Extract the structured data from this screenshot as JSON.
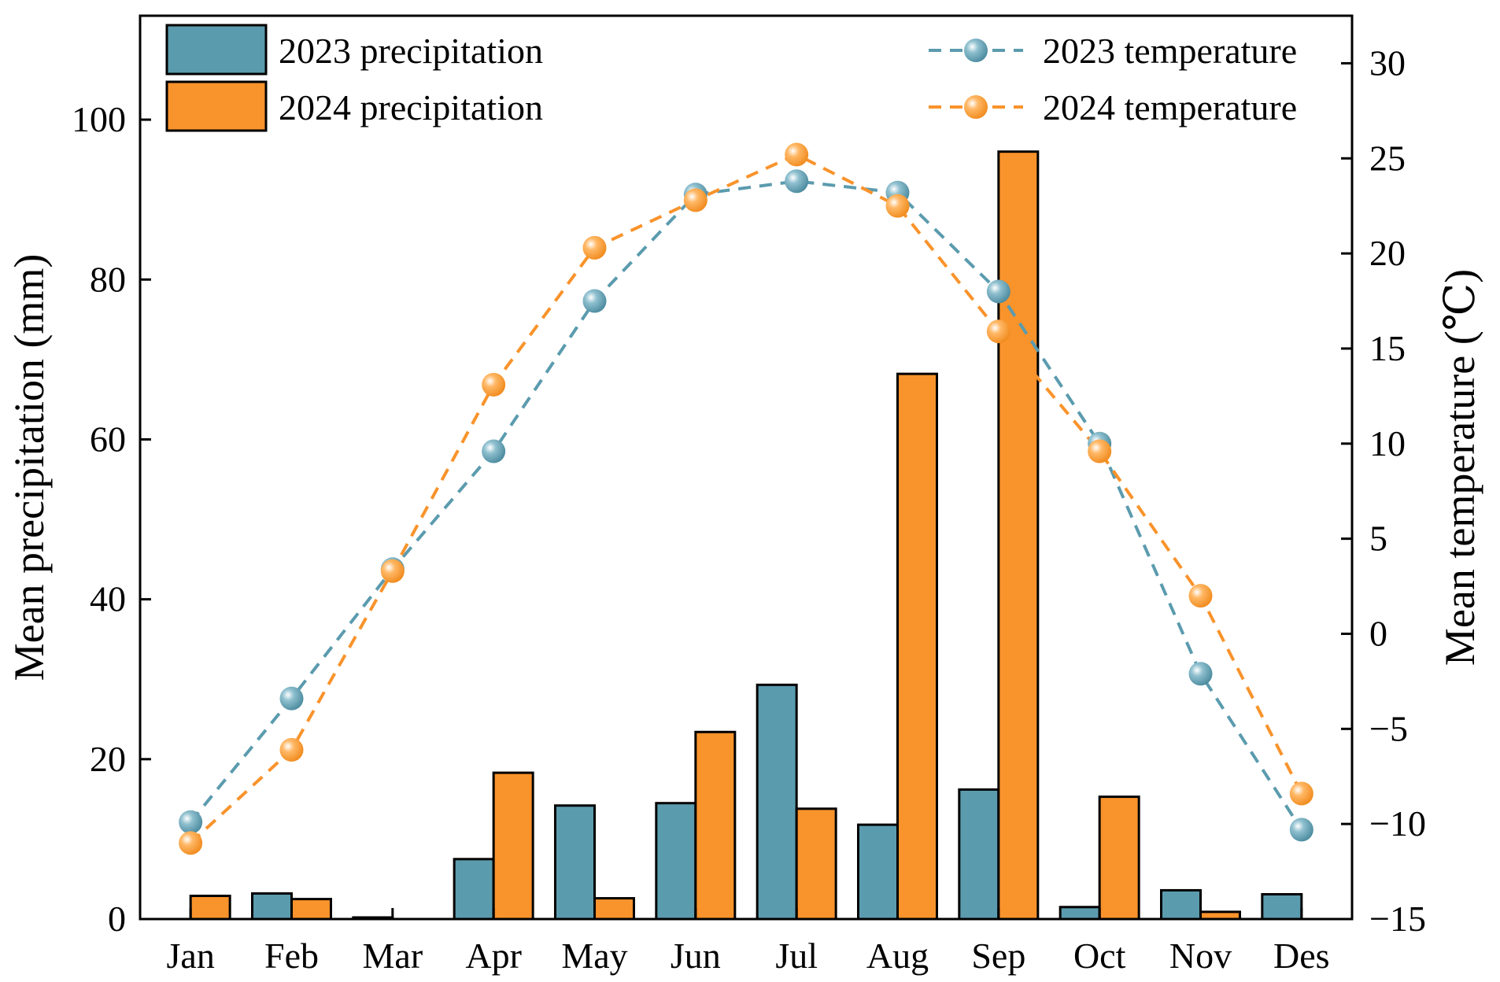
{
  "chart_data": {
    "type": "bar",
    "categories": [
      "Jan",
      "Feb",
      "Mar",
      "Apr",
      "May",
      "Jun",
      "Jul",
      "Aug",
      "Sep",
      "Oct",
      "Nov",
      "Des"
    ],
    "series": [
      {
        "name": "2023 precipitation",
        "kind": "bar",
        "axis": "left",
        "color": "#5B9BAE",
        "values": [
          0,
          3.2,
          0.2,
          7.5,
          14.2,
          14.5,
          29.3,
          11.8,
          16.2,
          1.5,
          3.6,
          3.1
        ]
      },
      {
        "name": "2024 precipitation",
        "kind": "bar",
        "axis": "left",
        "color": "#F9932B",
        "values": [
          2.9,
          2.5,
          0,
          18.3,
          2.6,
          23.4,
          13.8,
          68.2,
          96,
          15.3,
          0.9,
          0
        ]
      },
      {
        "name": "2023 temperature",
        "kind": "line",
        "axis": "right",
        "color": "#5B9BAE",
        "values": [
          -9.9,
          -3.4,
          3.4,
          9.6,
          17.5,
          23.1,
          23.8,
          23.2,
          18.0,
          10.0,
          -2.1,
          -10.3
        ]
      },
      {
        "name": "2024 temperature",
        "kind": "line",
        "axis": "right",
        "color": "#F9932B",
        "values": [
          -11.0,
          -6.1,
          3.3,
          13.1,
          20.3,
          22.8,
          25.2,
          22.5,
          15.9,
          9.6,
          2.0,
          -8.4
        ]
      }
    ],
    "ylabel": "Mean precipitation (mm)",
    "ylabel_right": "Mean temperature (℃)",
    "ylim": [
      0,
      113
    ],
    "ylim_right": [
      -15,
      32.5
    ],
    "yticks": [
      0,
      20,
      40,
      60,
      80,
      100
    ],
    "yticks_right": [
      -15,
      -10,
      -5,
      0,
      5,
      10,
      15,
      20,
      25,
      30
    ],
    "ytick_labels_right": [
      "−15",
      "−10",
      "−5",
      "0",
      "5",
      "10",
      "15",
      "20",
      "25",
      "30"
    ],
    "grid": false,
    "legend_left_position": "top-left",
    "legend_right_position": "top-right"
  }
}
